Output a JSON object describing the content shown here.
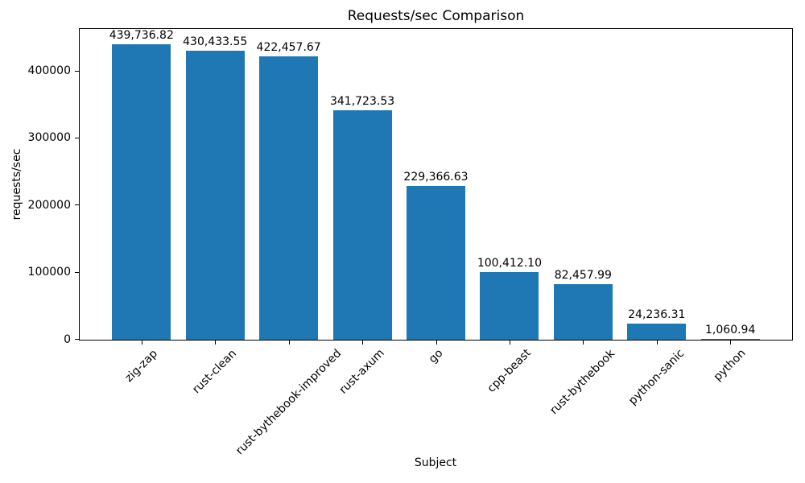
{
  "chart_data": {
    "type": "bar",
    "title": "Requests/sec Comparison",
    "xlabel": "Subject",
    "ylabel": "requests/sec",
    "categories": [
      "zig-zap",
      "rust-clean",
      "rust-bythebook-improved",
      "rust-axum",
      "go",
      "cpp-beast",
      "rust-bythebook",
      "python-sanic",
      "python"
    ],
    "values": [
      439736.82,
      430433.55,
      422457.67,
      341723.53,
      229366.63,
      100412.1,
      82457.99,
      24236.31,
      1060.94
    ],
    "value_labels": [
      "439,736.82",
      "430,433.55",
      "422,457.67",
      "341,723.53",
      "229,366.63",
      "100,412.10",
      "82,457.99",
      "24,236.31",
      "1,060.94"
    ],
    "yticks": [
      0,
      100000,
      200000,
      300000,
      400000
    ],
    "ytick_labels": [
      "0",
      "100000",
      "200000",
      "300000",
      "400000"
    ],
    "ylim": [
      0,
      463000
    ],
    "bar_color": "#1f77b4",
    "text_color": "#000000",
    "grid": false,
    "legend_position": "none",
    "x_tick_rotation": 45
  }
}
